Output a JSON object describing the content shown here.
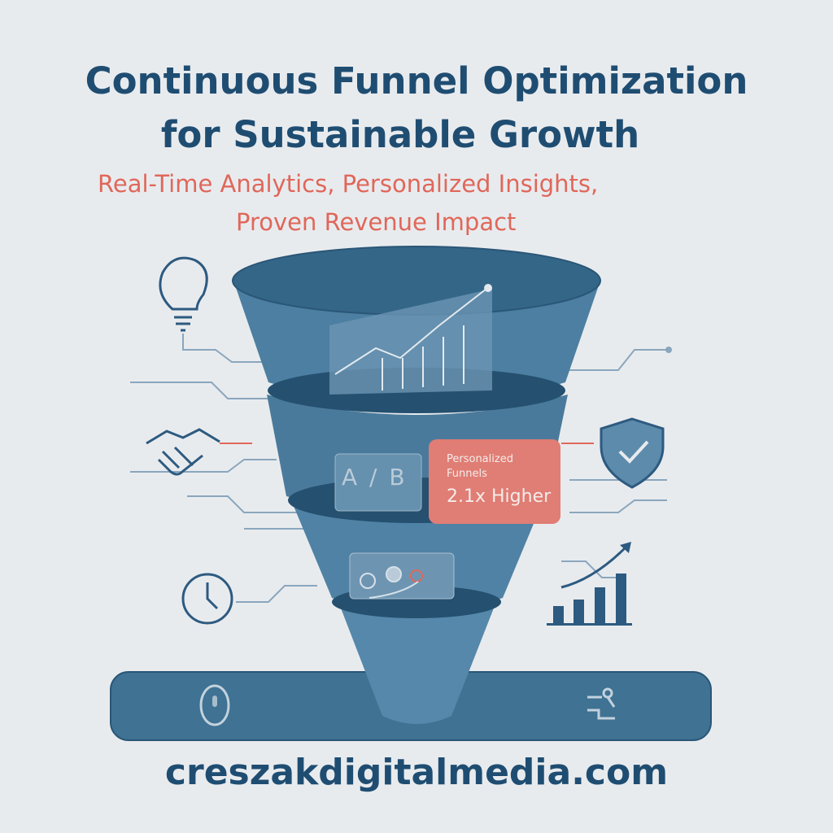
{
  "title": {
    "line1": "Continuous Funnel Optimization",
    "line2": "for Sustainable Growth"
  },
  "subtitle": {
    "line1": "Real-Time Analytics, Personalized Insights,",
    "line2": "Proven Revenue Impact"
  },
  "funnel": {
    "ab_label": "A / B"
  },
  "callout": {
    "label_line1": "Personalized",
    "label_line2": "Funnels",
    "value": "2.1x Higher"
  },
  "footer": {
    "url": "creszakdigitalmedia.com"
  },
  "icons": [
    "lightbulb-icon",
    "handshake-icon",
    "clock-icon",
    "shield-check-icon",
    "bar-chart-growth-icon",
    "mouse-icon",
    "workflow-icon"
  ],
  "colors": {
    "primary": "#1f4d72",
    "accent": "#e0675a",
    "funnel": "#4a7a9b",
    "background": "#e8ebee"
  }
}
